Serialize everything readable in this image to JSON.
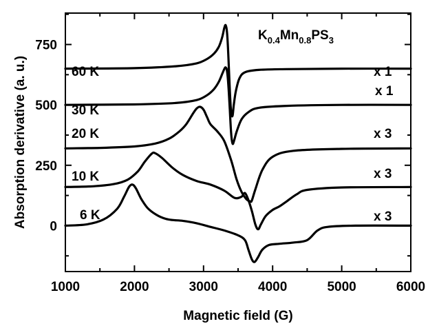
{
  "chart_data": {
    "type": "line",
    "title": {
      "parts": [
        {
          "text": "K",
          "sub": false
        },
        {
          "text": "0.4",
          "sub": true
        },
        {
          "text": "Mn",
          "sub": false
        },
        {
          "text": "0.8",
          "sub": true
        },
        {
          "text": "PS",
          "sub": false
        },
        {
          "text": "3",
          "sub": true
        }
      ]
    },
    "xlabel": "Magnetic field (G)",
    "ylabel": "Absorption derivative (a. u.)",
    "xlim": [
      1000,
      6000
    ],
    "ylim": [
      -190,
      880
    ],
    "xticks": [
      1000,
      2000,
      3000,
      4000,
      5000,
      6000
    ],
    "yticks": [
      0,
      250,
      500,
      750
    ],
    "grid": false,
    "line_color": "#000000",
    "series": [
      {
        "name": "60 K",
        "scale": "x 1",
        "x": [
          1000,
          2000,
          2600,
          2900,
          3050,
          3150,
          3220,
          3270,
          3300,
          3320,
          3340,
          3360,
          3380,
          3400,
          3420,
          3440,
          3470,
          3520,
          3600,
          3800,
          4200,
          5000,
          6000
        ],
        "y": [
          650,
          652,
          660,
          672,
          690,
          712,
          740,
          780,
          818,
          830,
          800,
          700,
          560,
          470,
          455,
          505,
          560,
          610,
          635,
          645,
          648,
          650,
          650
        ]
      },
      {
        "name": "30 K",
        "scale": "x 1",
        "x": [
          1000,
          2000,
          2600,
          2900,
          3050,
          3150,
          3220,
          3270,
          3300,
          3320,
          3340,
          3360,
          3380,
          3400,
          3420,
          3440,
          3480,
          3550,
          3650,
          3800,
          4200,
          5000,
          6000
        ],
        "y": [
          500,
          502,
          508,
          520,
          540,
          565,
          595,
          628,
          648,
          655,
          640,
          580,
          480,
          380,
          340,
          350,
          390,
          440,
          470,
          488,
          496,
          500,
          500
        ]
      },
      {
        "name": "20 K",
        "scale": "x 3",
        "x": [
          1000,
          1500,
          2000,
          2300,
          2500,
          2650,
          2750,
          2850,
          2900,
          2950,
          3000,
          3050,
          3100,
          3200,
          3300,
          3400,
          3480,
          3550,
          3620,
          3680,
          3700,
          3750,
          3850,
          4000,
          4300,
          5000,
          6000
        ],
        "y": [
          320,
          322,
          328,
          340,
          360,
          390,
          420,
          465,
          485,
          492,
          480,
          450,
          420,
          390,
          350,
          270,
          190,
          140,
          110,
          100,
          105,
          150,
          230,
          285,
          310,
          318,
          320
        ]
      },
      {
        "name": "10 K",
        "scale": "x 3",
        "x": [
          1000,
          1400,
          1700,
          1900,
          2050,
          2150,
          2250,
          2300,
          2400,
          2550,
          2700,
          2900,
          3100,
          3300,
          3450,
          3550,
          3600,
          3650,
          3700,
          3750,
          3790,
          3830,
          3900,
          4000,
          4100,
          4200,
          4350,
          4500,
          5000,
          6000
        ],
        "y": [
          160,
          163,
          172,
          190,
          225,
          265,
          298,
          300,
          280,
          240,
          210,
          185,
          170,
          145,
          115,
          120,
          135,
          105,
          60,
          5,
          -15,
          5,
          40,
          65,
          80,
          100,
          130,
          148,
          158,
          160
        ]
      },
      {
        "name": "6 K",
        "scale": "x 3",
        "x": [
          1000,
          1300,
          1550,
          1750,
          1850,
          1920,
          1970,
          2020,
          2100,
          2200,
          2350,
          2500,
          2700,
          2900,
          3100,
          3300,
          3500,
          3600,
          3650,
          3700,
          3740,
          3790,
          3850,
          3950,
          4100,
          4300,
          4500,
          4650,
          4800,
          5200,
          6000
        ],
        "y": [
          0,
          5,
          25,
          70,
          120,
          160,
          170,
          155,
          110,
          70,
          40,
          25,
          20,
          10,
          -5,
          -20,
          -40,
          -60,
          -100,
          -140,
          -150,
          -130,
          -100,
          -80,
          -75,
          -70,
          -60,
          -20,
          -5,
          0,
          0
        ]
      }
    ]
  }
}
